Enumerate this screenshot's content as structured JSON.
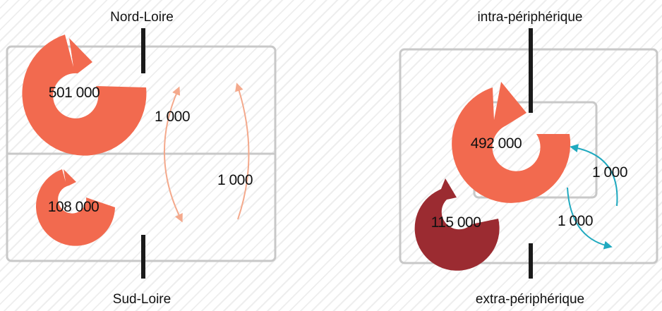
{
  "colors": {
    "internal_flow": "#f26a4f",
    "internal_flow_dark": "#9b2b31",
    "exchange_left": "#f4a98c",
    "exchange_right": "#1fa9bf",
    "divider": "#1a1a1a",
    "frame": "#c8c8c8"
  },
  "left": {
    "top_label": "Nord-Loire",
    "bottom_label": "Sud-Loire",
    "north_internal": "501 000",
    "south_internal": "108 000",
    "exchange_down": "1 000",
    "exchange_up": "1 000"
  },
  "right": {
    "top_label": "intra-périphérique",
    "bottom_label": "extra-périphérique",
    "inner_internal": "492 000",
    "outer_internal": "115 000",
    "exchange_in": "1 000",
    "exchange_out": "1 000"
  }
}
